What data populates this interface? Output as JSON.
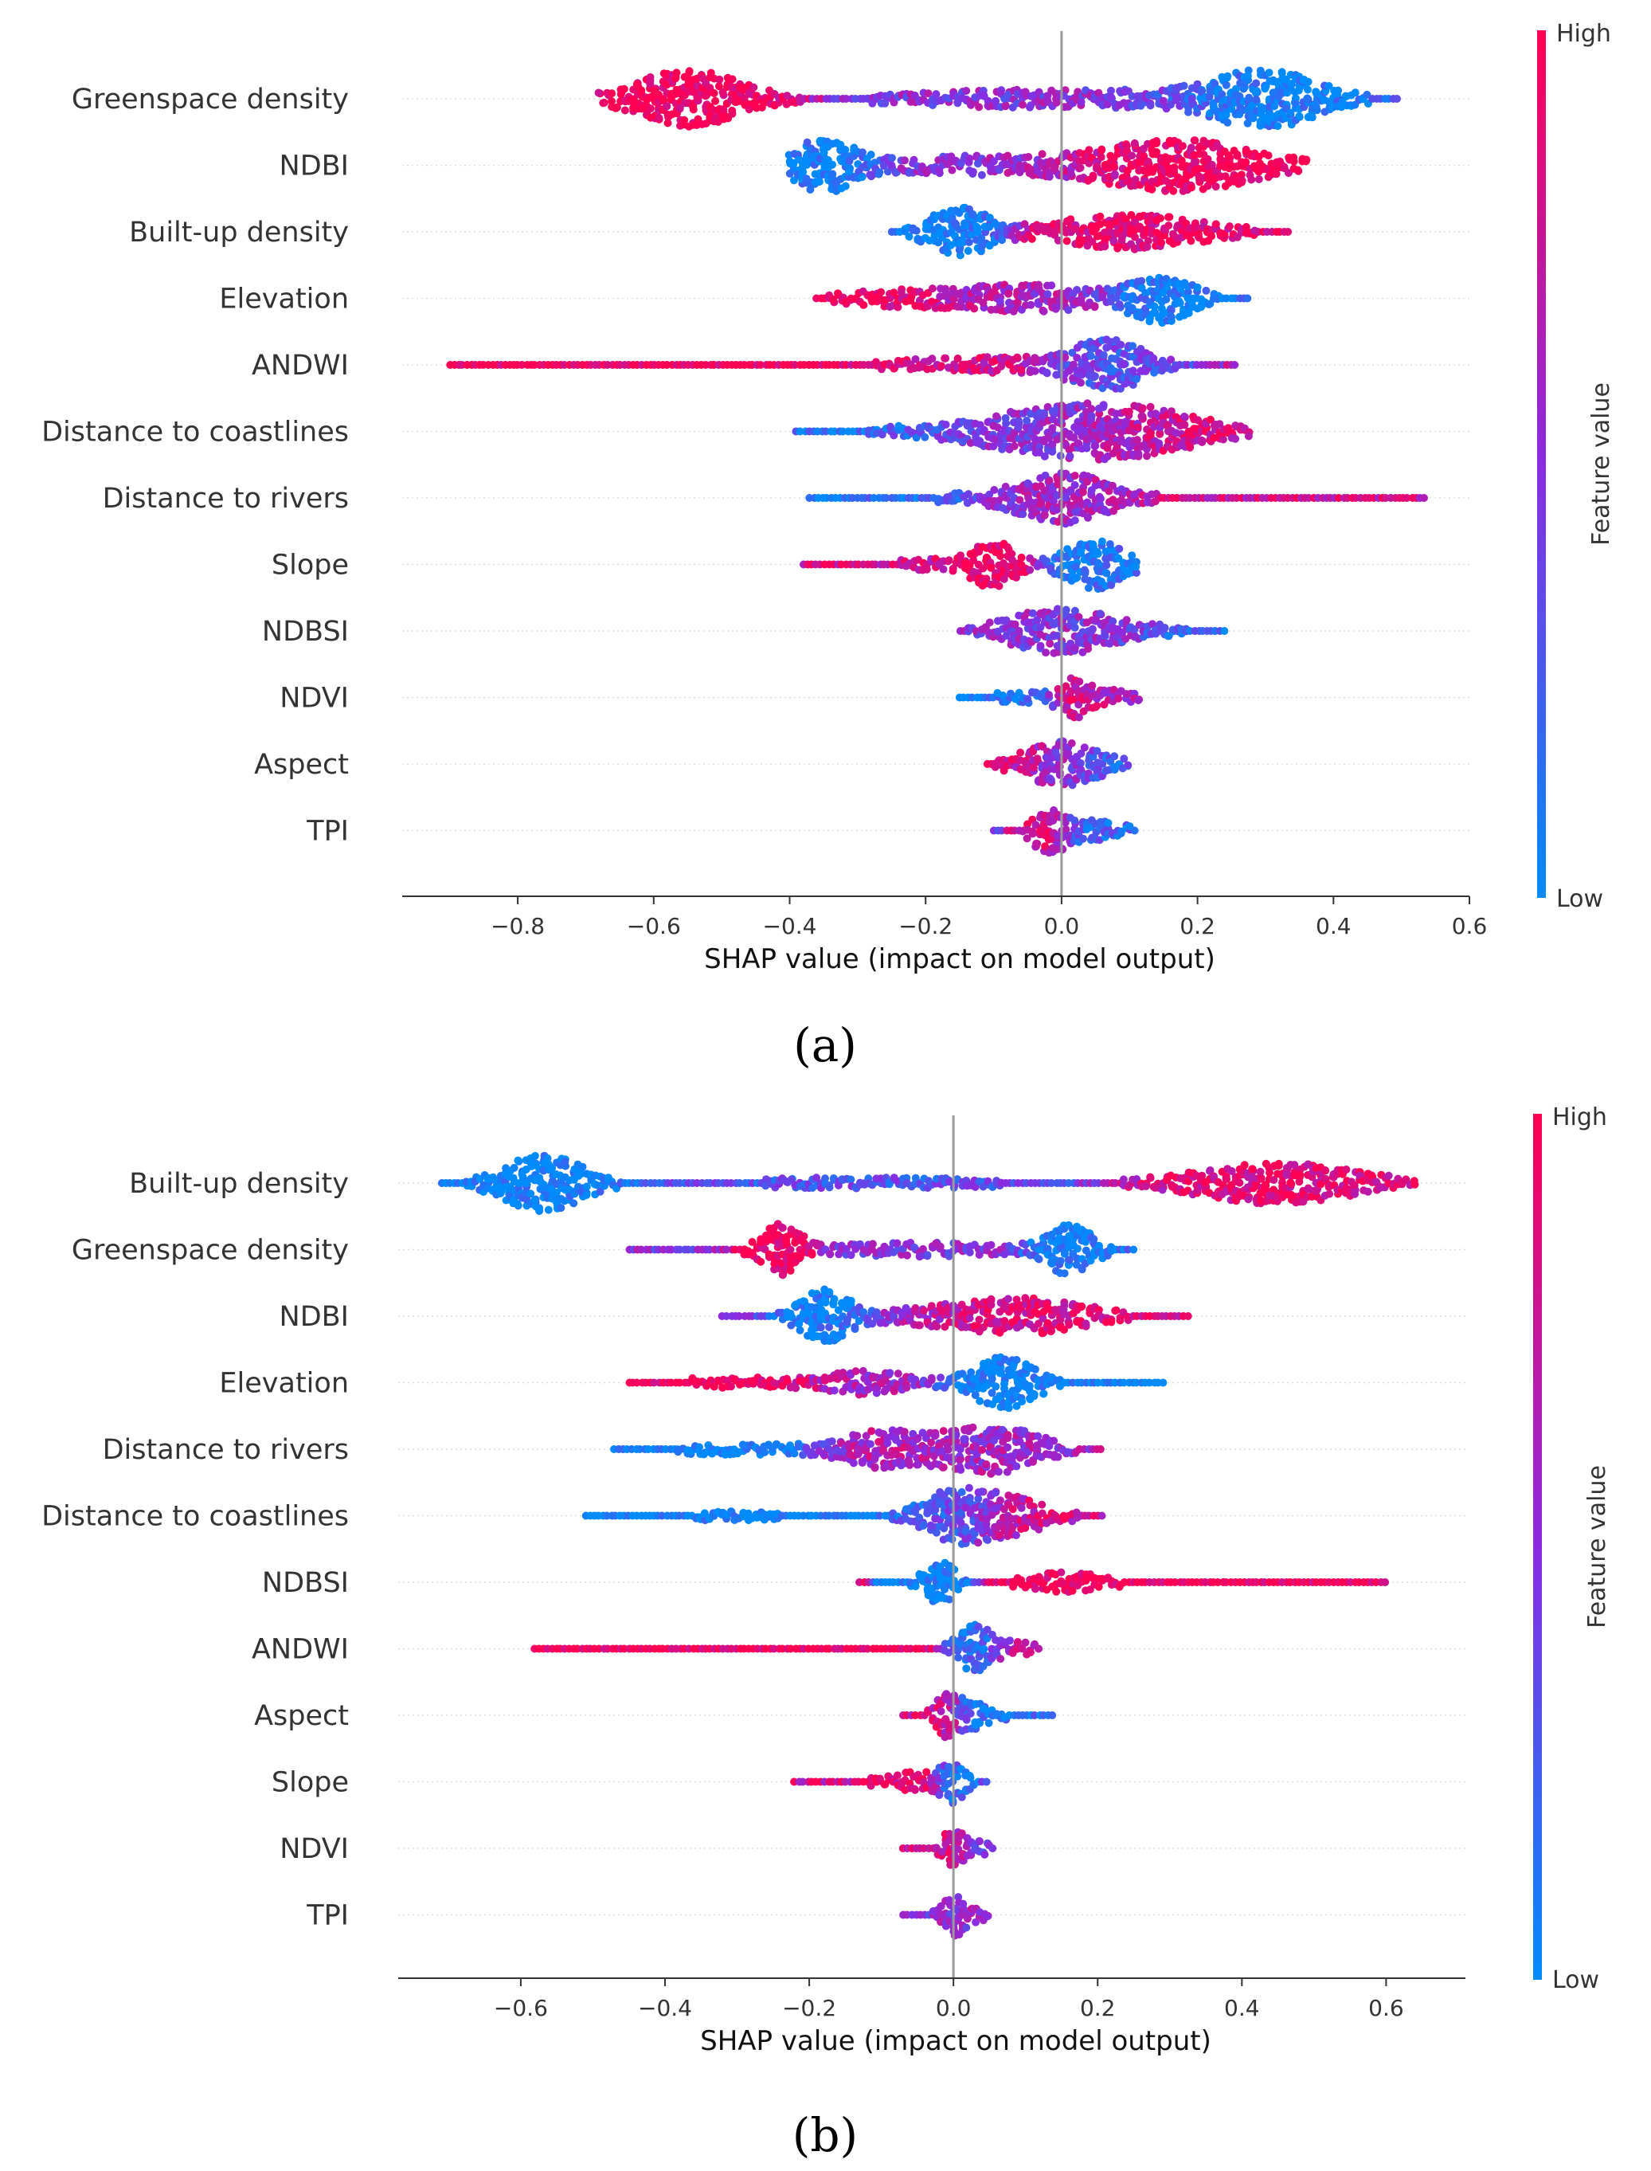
{
  "chart_data": [
    {
      "type": "scatter",
      "subtype": "shap-beeswarm",
      "panel_label": "(a)",
      "xlabel": "SHAP value (impact on model output)",
      "xlim": [
        -0.97,
        0.6
      ],
      "xticks": [
        -0.8,
        -0.6,
        -0.4,
        -0.2,
        0.0,
        0.2,
        0.4,
        0.6
      ],
      "xtick_labels": [
        "−0.8",
        "−0.6",
        "−0.4",
        "−0.2",
        "0.0",
        "0.2",
        "0.4",
        "0.6"
      ],
      "colorbar": {
        "title": "Feature value",
        "high": "High",
        "low": "Low",
        "high_color": "#ff0052",
        "low_color": "#008bfb"
      },
      "features": [
        {
          "name": "Greenspace density",
          "min": -0.68,
          "max": 0.5,
          "peaks": [
            [
              -0.55,
              1.0,
              0.07,
              1
            ],
            [
              0.3,
              0.95,
              0.07,
              0
            ],
            [
              0.0,
              0.3,
              0.2,
              0.5
            ]
          ]
        },
        {
          "name": "NDBI",
          "min": -0.4,
          "max": 0.36,
          "peaks": [
            [
              -0.35,
              0.9,
              0.04,
              0
            ],
            [
              0.18,
              0.85,
              0.1,
              1
            ],
            [
              -0.1,
              0.3,
              0.15,
              0.5
            ]
          ]
        },
        {
          "name": "Built-up density",
          "min": -0.25,
          "max": 0.34,
          "peaks": [
            [
              -0.15,
              0.85,
              0.04,
              0
            ],
            [
              0.1,
              0.6,
              0.1,
              0.9
            ]
          ]
        },
        {
          "name": "Elevation",
          "min": -0.36,
          "max": 0.28,
          "peaks": [
            [
              0.15,
              0.8,
              0.04,
              0
            ],
            [
              -0.05,
              0.45,
              0.1,
              0.6
            ],
            [
              -0.25,
              0.2,
              0.08,
              1
            ]
          ]
        },
        {
          "name": "ANDWI",
          "min": -0.9,
          "max": 0.26,
          "peaks": [
            [
              0.07,
              0.85,
              0.05,
              0.3
            ],
            [
              -0.45,
              0.08,
              0.25,
              1
            ],
            [
              -0.1,
              0.2,
              0.1,
              0.8
            ]
          ]
        },
        {
          "name": "Distance to coastlines",
          "min": -0.39,
          "max": 0.28,
          "peaks": [
            [
              0.0,
              0.85,
              0.1,
              0.5
            ],
            [
              0.15,
              0.5,
              0.08,
              0.9
            ],
            [
              -0.25,
              0.1,
              0.1,
              0.1
            ]
          ]
        },
        {
          "name": "Distance to rivers",
          "min": -0.37,
          "max": 0.54,
          "peaks": [
            [
              0.0,
              0.9,
              0.06,
              0.6
            ],
            [
              0.3,
              0.1,
              0.15,
              0.8
            ],
            [
              -0.2,
              0.1,
              0.1,
              0.1
            ]
          ]
        },
        {
          "name": "Slope",
          "min": -0.38,
          "max": 0.11,
          "peaks": [
            [
              0.05,
              0.85,
              0.04,
              0.1
            ],
            [
              -0.1,
              0.8,
              0.03,
              1
            ],
            [
              -0.2,
              0.15,
              0.05,
              0.8
            ]
          ]
        },
        {
          "name": "NDBSI",
          "min": -0.15,
          "max": 0.24,
          "peaks": [
            [
              0.0,
              0.8,
              0.07,
              0.5
            ],
            [
              0.15,
              0.1,
              0.06,
              0.1
            ]
          ]
        },
        {
          "name": "NDVI",
          "min": -0.15,
          "max": 0.12,
          "peaks": [
            [
              0.02,
              0.6,
              0.02,
              0.9
            ],
            [
              -0.05,
              0.15,
              0.06,
              0.1
            ],
            [
              0.08,
              0.2,
              0.03,
              0.7
            ]
          ]
        },
        {
          "name": "Aspect",
          "min": -0.11,
          "max": 0.1,
          "peaks": [
            [
              0.0,
              0.6,
              0.04,
              0.5
            ],
            [
              -0.05,
              0.2,
              0.04,
              1
            ],
            [
              0.05,
              0.2,
              0.04,
              0.1
            ]
          ]
        },
        {
          "name": "TPI",
          "min": -0.1,
          "max": 0.11,
          "peaks": [
            [
              -0.02,
              0.7,
              0.02,
              0.9
            ],
            [
              0.04,
              0.4,
              0.04,
              0.2
            ]
          ]
        }
      ]
    },
    {
      "type": "scatter",
      "subtype": "shap-beeswarm",
      "panel_label": "(b)",
      "xlabel": "SHAP value (impact on model output)",
      "xlim": [
        -0.77,
        0.71
      ],
      "xticks": [
        -0.6,
        -0.4,
        -0.2,
        0.0,
        0.2,
        0.4,
        0.6
      ],
      "xtick_labels": [
        "−0.6",
        "−0.4",
        "−0.2",
        "0.0",
        "0.2",
        "0.4",
        "0.6"
      ],
      "colorbar": {
        "title": "Feature value",
        "high": "High",
        "low": "Low",
        "high_color": "#ff0052",
        "low_color": "#008bfb"
      },
      "features": [
        {
          "name": "Built-up density",
          "min": -0.71,
          "max": 0.64,
          "peaks": [
            [
              -0.57,
              1.0,
              0.05,
              0
            ],
            [
              0.45,
              0.7,
              0.1,
              0.9
            ],
            [
              -0.1,
              0.15,
              0.2,
              0.3
            ]
          ]
        },
        {
          "name": "Greenspace density",
          "min": -0.45,
          "max": 0.25,
          "peaks": [
            [
              -0.24,
              0.85,
              0.025,
              1
            ],
            [
              0.16,
              0.85,
              0.03,
              0
            ],
            [
              -0.05,
              0.2,
              0.12,
              0.5
            ]
          ]
        },
        {
          "name": "NDBI",
          "min": -0.32,
          "max": 0.33,
          "peaks": [
            [
              -0.18,
              0.85,
              0.03,
              0
            ],
            [
              0.1,
              0.55,
              0.08,
              0.9
            ],
            [
              -0.05,
              0.2,
              0.1,
              0.5
            ]
          ]
        },
        {
          "name": "Elevation",
          "min": -0.45,
          "max": 0.29,
          "peaks": [
            [
              0.07,
              0.9,
              0.04,
              0
            ],
            [
              -0.12,
              0.4,
              0.05,
              0.6
            ],
            [
              -0.3,
              0.15,
              0.08,
              1
            ]
          ]
        },
        {
          "name": "Distance to rivers",
          "min": -0.47,
          "max": 0.21,
          "peaks": [
            [
              0.05,
              0.85,
              0.06,
              0.6
            ],
            [
              -0.1,
              0.6,
              0.05,
              0.7
            ],
            [
              -0.3,
              0.15,
              0.1,
              0
            ]
          ]
        },
        {
          "name": "Distance to coastlines",
          "min": -0.51,
          "max": 0.21,
          "peaks": [
            [
              0.0,
              0.8,
              0.04,
              0.2
            ],
            [
              0.08,
              0.6,
              0.05,
              0.8
            ],
            [
              -0.3,
              0.12,
              0.12,
              0
            ]
          ]
        },
        {
          "name": "NDBSI",
          "min": -0.13,
          "max": 0.6,
          "peaks": [
            [
              -0.02,
              0.75,
              0.02,
              0
            ],
            [
              0.15,
              0.3,
              0.05,
              1
            ],
            [
              0.4,
              0.1,
              0.12,
              1
            ]
          ]
        },
        {
          "name": "ANDWI",
          "min": -0.58,
          "max": 0.12,
          "peaks": [
            [
              0.03,
              0.75,
              0.02,
              0.1
            ],
            [
              -0.25,
              0.1,
              0.18,
              1
            ],
            [
              0.08,
              0.2,
              0.03,
              0.7
            ]
          ]
        },
        {
          "name": "Aspect",
          "min": -0.07,
          "max": 0.14,
          "peaks": [
            [
              -0.01,
              0.65,
              0.015,
              0.9
            ],
            [
              0.02,
              0.45,
              0.02,
              0.1
            ],
            [
              0.08,
              0.1,
              0.04,
              0.1
            ]
          ]
        },
        {
          "name": "Slope",
          "min": -0.22,
          "max": 0.05,
          "peaks": [
            [
              0.0,
              0.65,
              0.015,
              0.1
            ],
            [
              -0.05,
              0.3,
              0.03,
              0.9
            ],
            [
              -0.15,
              0.1,
              0.05,
              0.8
            ]
          ]
        },
        {
          "name": "NDVI",
          "min": -0.07,
          "max": 0.06,
          "peaks": [
            [
              0.0,
              0.6,
              0.015,
              0.8
            ],
            [
              0.03,
              0.2,
              0.02,
              0.3
            ]
          ]
        },
        {
          "name": "TPI",
          "min": -0.07,
          "max": 0.05,
          "peaks": [
            [
              0.0,
              0.65,
              0.015,
              0.5
            ],
            [
              0.03,
              0.2,
              0.02,
              0.7
            ]
          ]
        }
      ]
    }
  ]
}
